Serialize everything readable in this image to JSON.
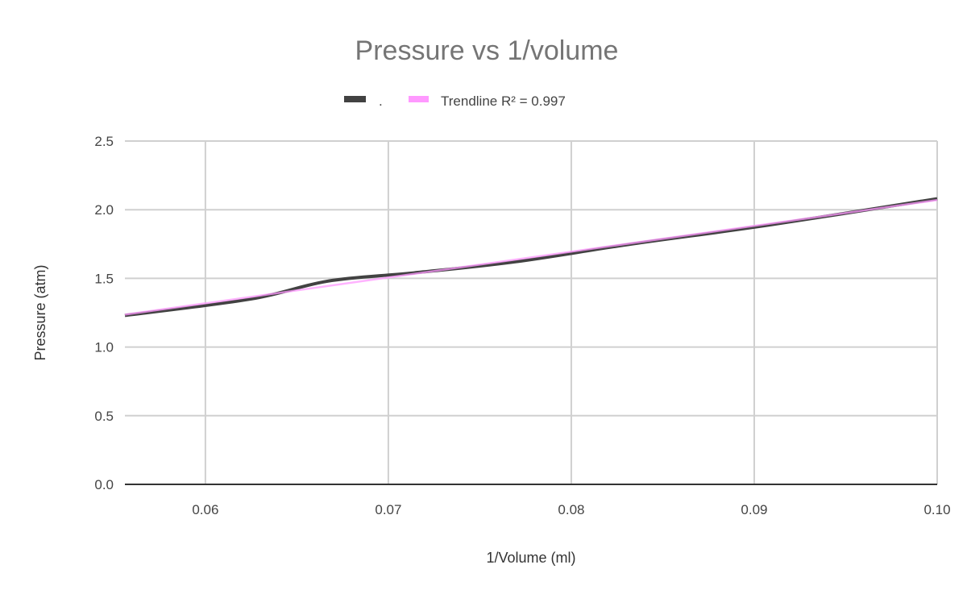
{
  "chart_data": {
    "type": "line",
    "title": "Pressure vs 1/volume",
    "xlabel": "1/Volume (ml)",
    "ylabel": "Pressure (atm)",
    "xlim": [
      0.0556,
      0.1
    ],
    "ylim": [
      0,
      2.5
    ],
    "x_ticks": [
      "0.06",
      "0.07",
      "0.08",
      "0.09",
      "0.10"
    ],
    "x_tick_values": [
      0.06,
      0.07,
      0.08,
      0.09,
      0.1
    ],
    "y_ticks": [
      "0.0",
      "0.5",
      "1.0",
      "1.5",
      "2.0",
      "2.5"
    ],
    "y_tick_values": [
      0,
      0.5,
      1.0,
      1.5,
      2.0,
      2.5
    ],
    "grid": true,
    "legend_position": "top",
    "series": [
      {
        "name": ".",
        "color": "#424242",
        "x": [
          0.0556,
          0.0625,
          0.0667,
          0.0714,
          0.0769,
          0.0833,
          0.0909,
          0.1
        ],
        "y": [
          1.23,
          1.35,
          1.48,
          1.54,
          1.62,
          1.75,
          1.89,
          2.08
        ]
      }
    ],
    "trendline": {
      "type": "linear",
      "label": "Trendline R² = 0.997",
      "color": "#ff99ff"
    }
  }
}
